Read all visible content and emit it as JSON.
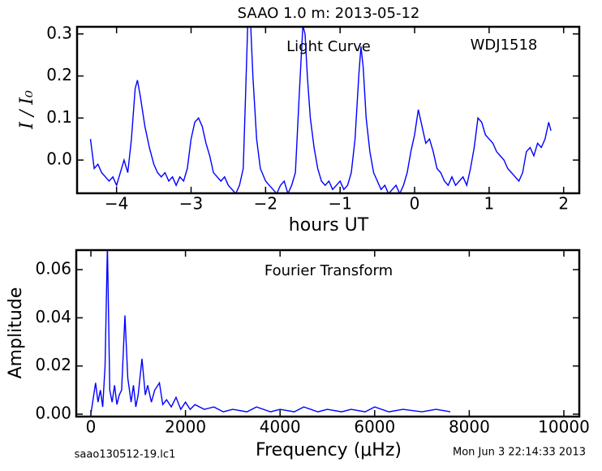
{
  "chart_data": [
    {
      "type": "line",
      "title": "SAAO 1.0 m:  2013-05-12",
      "x_label": "hours UT",
      "y_label": "I / I₀",
      "annotations": [
        "Light Curve",
        "WDJ1518"
      ],
      "xlim": [
        -4.53,
        2.21
      ],
      "ylim": [
        -0.079,
        0.317
      ],
      "xticks": [
        {
          "value": -4,
          "label": "−4"
        },
        {
          "value": -3,
          "label": "−3"
        },
        {
          "value": -2,
          "label": "−2"
        },
        {
          "value": -1,
          "label": "−1"
        },
        0,
        1,
        2
      ],
      "yticks": [
        {
          "value": 0,
          "label": "0.0"
        },
        0.1,
        0.2,
        0.3
      ],
      "x": [
        -4.35,
        -4.3,
        -4.25,
        -4.2,
        -4.15,
        -4.1,
        -4.05,
        -4.0,
        -3.95,
        -3.9,
        -3.85,
        -3.8,
        -3.75,
        -3.72,
        -3.68,
        -3.62,
        -3.56,
        -3.5,
        -3.45,
        -3.4,
        -3.35,
        -3.3,
        -3.25,
        -3.2,
        -3.15,
        -3.1,
        -3.05,
        -3.0,
        -2.95,
        -2.9,
        -2.85,
        -2.8,
        -2.75,
        -2.7,
        -2.65,
        -2.6,
        -2.55,
        -2.5,
        -2.45,
        -2.4,
        -2.35,
        -2.3,
        -2.27,
        -2.24,
        -2.2,
        -2.17,
        -2.12,
        -2.07,
        -2.0,
        -1.95,
        -1.9,
        -1.85,
        -1.8,
        -1.75,
        -1.7,
        -1.65,
        -1.6,
        -1.55,
        -1.5,
        -1.47,
        -1.44,
        -1.4,
        -1.35,
        -1.3,
        -1.25,
        -1.2,
        -1.15,
        -1.1,
        -1.05,
        -1.0,
        -0.95,
        -0.9,
        -0.85,
        -0.8,
        -0.75,
        -0.72,
        -0.69,
        -0.65,
        -0.6,
        -0.55,
        -0.5,
        -0.45,
        -0.4,
        -0.35,
        -0.3,
        -0.25,
        -0.2,
        -0.15,
        -0.1,
        -0.05,
        0.0,
        0.05,
        0.1,
        0.15,
        0.2,
        0.25,
        0.3,
        0.35,
        0.4,
        0.45,
        0.5,
        0.55,
        0.6,
        0.65,
        0.7,
        0.75,
        0.8,
        0.85,
        0.9,
        0.95,
        1.0,
        1.05,
        1.1,
        1.15,
        1.2,
        1.25,
        1.3,
        1.35,
        1.4,
        1.45,
        1.5,
        1.55,
        1.6,
        1.65,
        1.7,
        1.75,
        1.8,
        1.83
      ],
      "series": [
        {
          "color": "#0000ff",
          "values": [
            0.05,
            -0.02,
            -0.01,
            -0.03,
            -0.04,
            -0.05,
            -0.04,
            -0.06,
            -0.03,
            0.0,
            -0.03,
            0.05,
            0.17,
            0.19,
            0.15,
            0.08,
            0.03,
            -0.01,
            -0.03,
            -0.04,
            -0.03,
            -0.05,
            -0.04,
            -0.06,
            -0.04,
            -0.05,
            -0.02,
            0.05,
            0.09,
            0.1,
            0.08,
            0.04,
            0.01,
            -0.03,
            -0.04,
            -0.05,
            -0.04,
            -0.06,
            -0.07,
            -0.08,
            -0.06,
            -0.02,
            0.15,
            0.32,
            0.32,
            0.2,
            0.05,
            -0.02,
            -0.05,
            -0.06,
            -0.07,
            -0.08,
            -0.06,
            -0.05,
            -0.08,
            -0.06,
            -0.03,
            0.15,
            0.32,
            0.3,
            0.2,
            0.1,
            0.03,
            -0.02,
            -0.05,
            -0.06,
            -0.05,
            -0.07,
            -0.06,
            -0.05,
            -0.07,
            -0.06,
            -0.03,
            0.05,
            0.2,
            0.27,
            0.22,
            0.1,
            0.02,
            -0.03,
            -0.05,
            -0.07,
            -0.06,
            -0.08,
            -0.07,
            -0.06,
            -0.08,
            -0.06,
            -0.03,
            0.02,
            0.06,
            0.12,
            0.08,
            0.04,
            0.05,
            0.02,
            -0.02,
            -0.03,
            -0.05,
            -0.06,
            -0.04,
            -0.06,
            -0.05,
            -0.04,
            -0.06,
            -0.02,
            0.03,
            0.1,
            0.09,
            0.06,
            0.05,
            0.04,
            0.02,
            0.01,
            0.0,
            -0.02,
            -0.03,
            -0.04,
            -0.05,
            -0.03,
            0.02,
            0.03,
            0.01,
            0.04,
            0.03,
            0.05,
            0.09,
            0.07
          ]
        }
      ]
    },
    {
      "type": "line",
      "x_label": "Frequency (μHz)",
      "y_label": "Amplitude",
      "annotations": [
        "Fourier Transform"
      ],
      "xlim": [
        -309,
        10326
      ],
      "ylim": [
        -0.001,
        0.0681
      ],
      "xticks": [
        0,
        2000,
        4000,
        6000,
        8000,
        10000
      ],
      "yticks": [
        {
          "value": 0,
          "label": "0.00"
        },
        0.02,
        0.04,
        0.06
      ],
      "x": [
        0,
        100,
        150,
        200,
        250,
        300,
        350,
        400,
        450,
        500,
        550,
        600,
        650,
        720,
        780,
        850,
        900,
        950,
        1000,
        1080,
        1150,
        1200,
        1280,
        1350,
        1450,
        1520,
        1600,
        1700,
        1800,
        1900,
        2000,
        2100,
        2200,
        2400,
        2600,
        2800,
        3000,
        3300,
        3500,
        3800,
        4000,
        4300,
        4500,
        4800,
        5000,
        5300,
        5500,
        5800,
        6000,
        6300,
        6600,
        7000,
        7300,
        7600
      ],
      "series": [
        {
          "color": "#0000ff",
          "values": [
            0.0,
            0.013,
            0.005,
            0.01,
            0.003,
            0.02,
            0.07,
            0.01,
            0.005,
            0.012,
            0.004,
            0.008,
            0.01,
            0.041,
            0.015,
            0.005,
            0.012,
            0.003,
            0.008,
            0.023,
            0.008,
            0.012,
            0.005,
            0.01,
            0.013,
            0.004,
            0.006,
            0.003,
            0.007,
            0.002,
            0.005,
            0.002,
            0.004,
            0.002,
            0.003,
            0.001,
            0.002,
            0.001,
            0.003,
            0.001,
            0.002,
            0.001,
            0.003,
            0.001,
            0.002,
            0.001,
            0.002,
            0.001,
            0.003,
            0.001,
            0.002,
            0.001,
            0.002,
            0.001
          ]
        }
      ]
    }
  ],
  "footer_left": "saao130512-19.lc1",
  "footer_right": "Mon Jun  3 22:14:33 2013"
}
